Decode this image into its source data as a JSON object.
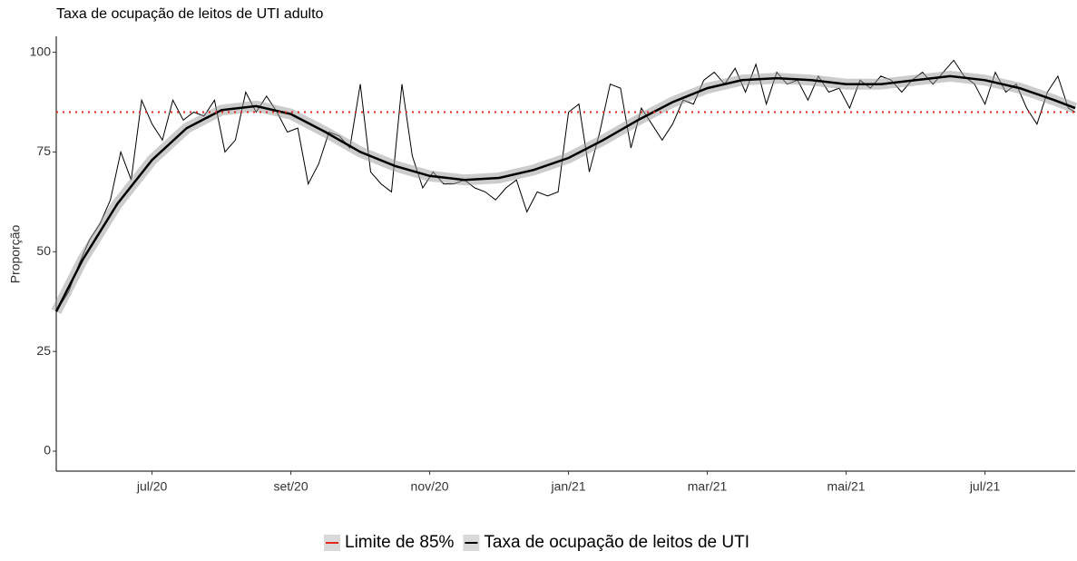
{
  "chart_data": {
    "type": "line",
    "title": "Taxa de ocupação de leitos de UTI adulto",
    "ylabel": "Proporção",
    "x": [
      5.62,
      5.8,
      5.95,
      6.1,
      6.25,
      6.4,
      6.55,
      6.7,
      6.85,
      7.0,
      7.15,
      7.3,
      7.45,
      7.6,
      7.75,
      7.9,
      8.05,
      8.2,
      8.35,
      8.5,
      8.65,
      8.8,
      8.95,
      9.1,
      9.25,
      9.4,
      9.55,
      9.7,
      9.85,
      10.0,
      10.15,
      10.3,
      10.45,
      10.6,
      10.75,
      10.9,
      11.05,
      11.2,
      11.35,
      11.5,
      11.65,
      11.8,
      11.95,
      12.1,
      12.25,
      12.4,
      12.55,
      12.7,
      12.85,
      13.0,
      13.15,
      13.3,
      13.45,
      13.6,
      13.75,
      13.9,
      14.05,
      14.2,
      14.35,
      14.5,
      14.65,
      14.8,
      14.95,
      15.1,
      15.25,
      15.4,
      15.55,
      15.7,
      15.85,
      16.0,
      16.15,
      16.3,
      16.45,
      16.6,
      16.75,
      16.9,
      17.05,
      17.2,
      17.35,
      17.5,
      17.65,
      17.8,
      17.95,
      18.1,
      18.25,
      18.4,
      18.55,
      18.7,
      18.85,
      19.0,
      19.15,
      19.3,
      19.45,
      19.6,
      19.75,
      19.9,
      20.05,
      20.2,
      20.3
    ],
    "values": [
      35,
      40,
      47,
      53,
      57,
      63,
      75,
      68,
      88,
      82,
      78,
      88,
      83,
      85,
      84,
      88,
      75,
      78,
      90,
      85,
      89,
      85,
      80,
      81,
      67,
      72,
      80,
      79,
      76,
      92,
      70,
      67,
      65,
      92,
      74,
      66,
      70,
      67,
      67,
      68,
      66,
      65,
      63,
      66,
      68,
      60,
      65,
      64,
      65,
      85,
      87,
      70,
      80,
      92,
      91,
      76,
      86,
      82,
      78,
      82,
      88,
      87,
      93,
      95,
      92,
      96,
      90,
      97,
      87,
      95,
      92,
      93,
      88,
      94,
      90,
      91,
      86,
      93,
      91,
      94,
      93,
      90,
      93,
      95,
      92,
      95,
      98,
      94,
      92,
      87,
      95,
      90,
      92,
      86,
      82,
      90,
      94,
      86,
      85
    ],
    "series": [
      {
        "name": "Taxa de ocupação de leitos de UTI",
        "color": "#000000",
        "x": [
          5.62,
          6.0,
          6.5,
          7.0,
          7.5,
          8.0,
          8.5,
          9.0,
          9.5,
          10.0,
          10.5,
          11.0,
          11.5,
          12.0,
          12.5,
          13.0,
          13.5,
          14.0,
          14.5,
          15.0,
          15.5,
          16.0,
          16.5,
          17.0,
          17.5,
          18.0,
          18.5,
          19.0,
          19.5,
          20.0,
          20.3
        ],
        "values": [
          35,
          48,
          62,
          73,
          81,
          85.5,
          86.5,
          84.5,
          80,
          75,
          71.5,
          69,
          68,
          68.5,
          70.5,
          73.5,
          78,
          83,
          87.5,
          91,
          93,
          93.5,
          93,
          92,
          92,
          93,
          94,
          93,
          91,
          88,
          86
        ]
      }
    ],
    "reference_line": {
      "name": "Limite de 85%",
      "value": 85,
      "color": "#e8261c"
    },
    "xlim": [
      5.62,
      20.3
    ],
    "xticks": [
      {
        "value": 7,
        "label": "jul/20"
      },
      {
        "value": 9,
        "label": "set/20"
      },
      {
        "value": 11,
        "label": "nov/20"
      },
      {
        "value": 13,
        "label": "jan/21"
      },
      {
        "value": 15,
        "label": "mar/21"
      },
      {
        "value": 17,
        "label": "mai/21"
      },
      {
        "value": 19,
        "label": "jul/21"
      }
    ],
    "ylim": [
      -5,
      104
    ],
    "yticks": [
      0,
      25,
      50,
      75,
      100
    ]
  }
}
